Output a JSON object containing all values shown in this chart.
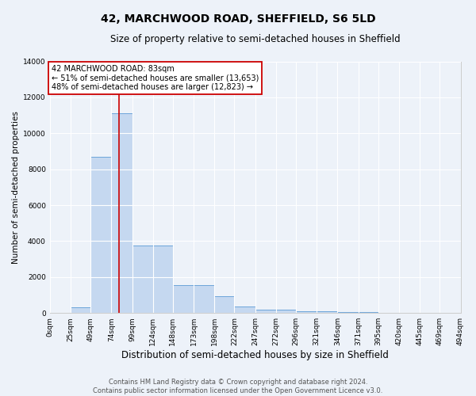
{
  "title": "42, MARCHWOOD ROAD, SHEFFIELD, S6 5LD",
  "subtitle": "Size of property relative to semi-detached houses in Sheffield",
  "xlabel": "Distribution of semi-detached houses by size in Sheffield",
  "ylabel": "Number of semi-detached properties",
  "bin_edges": [
    0,
    25,
    49,
    74,
    99,
    124,
    148,
    173,
    198,
    222,
    247,
    272,
    296,
    321,
    346,
    371,
    395,
    420,
    445,
    469,
    494
  ],
  "bin_labels": [
    "0sqm",
    "25sqm",
    "49sqm",
    "74sqm",
    "99sqm",
    "124sqm",
    "148sqm",
    "173sqm",
    "198sqm",
    "222sqm",
    "247sqm",
    "272sqm",
    "296sqm",
    "321sqm",
    "346sqm",
    "371sqm",
    "395sqm",
    "420sqm",
    "445sqm",
    "469sqm",
    "494sqm"
  ],
  "bar_heights": [
    0,
    300,
    8700,
    11100,
    3750,
    3750,
    1550,
    1550,
    950,
    350,
    200,
    200,
    100,
    100,
    50,
    50,
    30,
    30,
    20,
    0
  ],
  "bar_color": "#c5d8f0",
  "bar_edge_color": "#5b9bd5",
  "ylim": [
    0,
    14000
  ],
  "yticks": [
    0,
    2000,
    4000,
    6000,
    8000,
    10000,
    12000,
    14000
  ],
  "property_size": 83,
  "red_line_color": "#cc0000",
  "annotation_line1": "42 MARCHWOOD ROAD: 83sqm",
  "annotation_line2": "← 51% of semi-detached houses are smaller (13,653)",
  "annotation_line3": "48% of semi-detached houses are larger (12,823) →",
  "background_color": "#edf2f9",
  "grid_color": "#ffffff",
  "footer_line1": "Contains HM Land Registry data © Crown copyright and database right 2024.",
  "footer_line2": "Contains public sector information licensed under the Open Government Licence v3.0.",
  "title_fontsize": 10,
  "subtitle_fontsize": 8.5,
  "xlabel_fontsize": 8.5,
  "ylabel_fontsize": 7.5,
  "tick_fontsize": 6.5,
  "annotation_fontsize": 7,
  "footer_fontsize": 6
}
